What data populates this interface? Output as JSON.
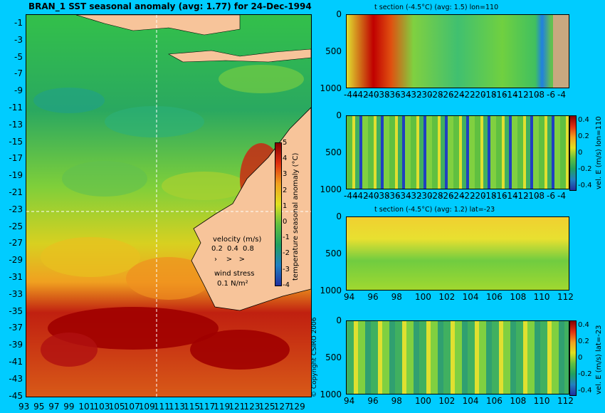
{
  "main_map": {
    "title": "BRAN_1  SST seasonal anomaly  (avg: 1.77)  for 24-Dec-1994",
    "y_ticks": [
      "-1",
      "-3",
      "-5",
      "-7",
      "-9",
      "-11",
      "-13",
      "-15",
      "-17",
      "-19",
      "-21",
      "-23",
      "-25",
      "-27",
      "-29",
      "-31",
      "-33",
      "-35",
      "-37",
      "-39",
      "-41",
      "-43",
      "-45"
    ],
    "x_ticks": [
      "93",
      "95",
      "97",
      "99",
      "101",
      "103",
      "105",
      "107",
      "109",
      "111",
      "113",
      "115",
      "117",
      "119",
      "121",
      "123",
      "125",
      "127",
      "129"
    ],
    "colorbar_ticks": [
      "5",
      "4",
      "3",
      "2",
      "1",
      "0",
      "-1",
      "-2",
      "-3",
      "-4"
    ],
    "colorbar_label": "temperature seasonal anomaly (°C)",
    "velocity_label": "velocity (m/s)",
    "velocity_values": [
      "0.2",
      "0.4",
      "0.8"
    ],
    "wind_label": "wind stress",
    "wind_value": "0.1 N/m²",
    "copyright": "© Copyright CSIRO 2006"
  },
  "panels": [
    {
      "title": "t section (-4.5°C) (avg: 1.5) lon=110",
      "x_ticks": [
        "-44",
        "-42",
        "-40",
        "-38",
        "-36",
        "-34",
        "-32",
        "-30",
        "-28",
        "-26",
        "-24",
        "-22",
        "-20",
        "-18",
        "-16",
        "-14",
        "-12",
        "-10",
        "-8",
        "-6",
        "-4"
      ],
      "y_ticks": [
        "0",
        "500",
        "1000"
      ],
      "colorbar_label": "",
      "colorbar_ticks": []
    },
    {
      "title": "",
      "x_ticks": [
        "-44",
        "-42",
        "-40",
        "-38",
        "-36",
        "-34",
        "-32",
        "-30",
        "-28",
        "-26",
        "-24",
        "-22",
        "-20",
        "-18",
        "-16",
        "-14",
        "-12",
        "-10",
        "-8",
        "-6",
        "-4"
      ],
      "y_ticks": [
        "0",
        "500",
        "1000"
      ],
      "colorbar_label": "vel. E (m/s) lon=110",
      "colorbar_ticks": [
        "0.4",
        "0.2",
        "0",
        "-0.2",
        "-0.4"
      ]
    },
    {
      "title": "t section (-4.5°C) (avg: 1.2) lat=-23",
      "x_ticks": [
        "94",
        "96",
        "98",
        "100",
        "102",
        "104",
        "106",
        "108",
        "110",
        "112"
      ],
      "y_ticks": [
        "0",
        "500",
        "1000"
      ],
      "colorbar_label": "",
      "colorbar_ticks": []
    },
    {
      "title": "",
      "x_ticks": [
        "94",
        "96",
        "98",
        "100",
        "102",
        "104",
        "106",
        "108",
        "110",
        "112"
      ],
      "y_ticks": [
        "0",
        "500",
        "1000"
      ],
      "colorbar_label": "vel. E (m/s) lat=-23",
      "colorbar_ticks": [
        "0.4",
        "0.2",
        "0",
        "-0.2",
        "-0.4"
      ]
    }
  ],
  "chart_data": {
    "type": "heatmap",
    "title": "BRAN_1  SST seasonal anomaly  (avg: 1.77)  for 24-Dec-1994",
    "xlim": [
      93,
      130
    ],
    "ylim": [
      -45,
      0
    ],
    "colorbar_range": [
      -4,
      5
    ],
    "section_lon": 110,
    "section_lat": -23,
    "colors": {
      "land": "#f7c49a",
      "section_land": "#c8a880",
      "background": "#00ccff"
    }
  }
}
